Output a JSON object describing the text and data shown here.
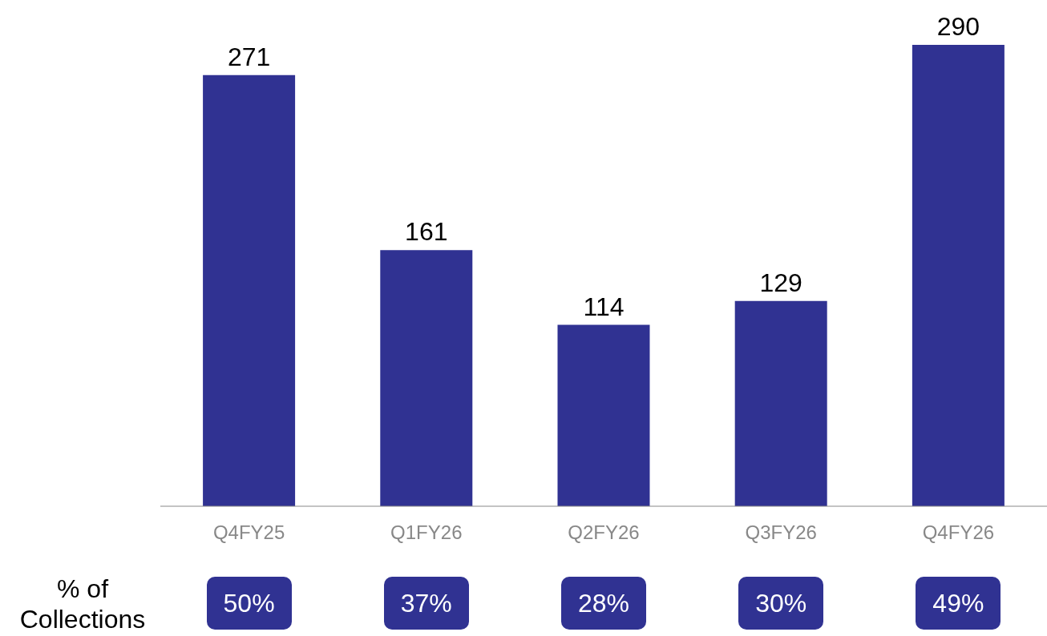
{
  "chart_data": {
    "type": "bar",
    "categories": [
      "Q4FY25",
      "Q1FY26",
      "Q2FY26",
      "Q3FY26",
      "Q4FY26"
    ],
    "values": [
      271,
      161,
      114,
      129,
      290
    ],
    "color": "#303292",
    "data_labels": true,
    "grid": false,
    "legend": false,
    "annotations": [
      "% of Collections",
      "50%",
      "37%",
      "28%",
      "30%",
      "49%"
    ]
  }
}
